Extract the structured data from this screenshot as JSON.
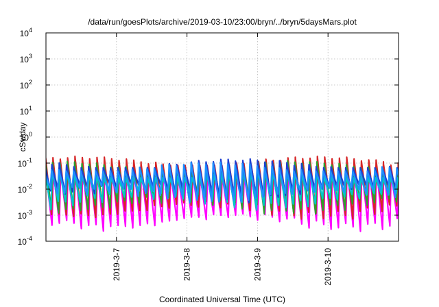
{
  "chart_data": {
    "type": "line",
    "title": "/data/run/goesPlots/archive/2019-03-10/23:00/bryn/../bryn/5daysMars.plot",
    "xlabel": "Coordinated Universal Time (UTC)",
    "ylabel": "cSv/day",
    "yscale": "log",
    "ylim": [
      0.0001,
      10000
    ],
    "y_ticks": [
      {
        "base": "10",
        "exp": "4"
      },
      {
        "base": "10",
        "exp": "3"
      },
      {
        "base": "10",
        "exp": "2"
      },
      {
        "base": "10",
        "exp": "1"
      },
      {
        "base": "10",
        "exp": "0"
      },
      {
        "base": "10",
        "exp": "-1"
      },
      {
        "base": "10",
        "exp": "-2"
      },
      {
        "base": "10",
        "exp": "-3"
      },
      {
        "base": "10",
        "exp": "-4"
      }
    ],
    "xlim": [
      "2019-03-06 00:00",
      "2019-03-11 00:00"
    ],
    "x_ticks": [
      "2019-3-7",
      "2019-3-8",
      "2019-3-9",
      "2019-3-10"
    ],
    "grid": true,
    "pattern": {
      "cycle_hours": 2.5,
      "envelope_peak": [
        0.15,
        0.1
      ],
      "envelope_trough": [
        0.01,
        0.0006
      ]
    },
    "series": [
      {
        "color": "#ff00ff",
        "peak": 0.06,
        "trough": 0.0009
      },
      {
        "color": "#d62728",
        "peak": 0.15,
        "trough": 0.0025
      },
      {
        "color": "#2ca02c",
        "peak": 0.1,
        "trough": 0.004
      },
      {
        "color": "#00c8c8",
        "peak": 0.05,
        "trough": 0.006
      },
      {
        "color": "#1f3fd0",
        "peak": 0.12,
        "trough": 0.012
      },
      {
        "color": "#1e90ff",
        "peak": 0.09,
        "trough": 0.009
      }
    ]
  }
}
